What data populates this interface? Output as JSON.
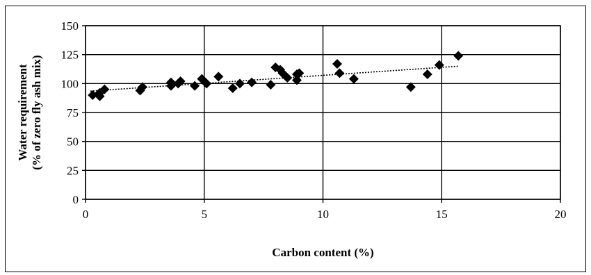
{
  "chart_data": {
    "type": "scatter",
    "title": "",
    "xlabel": "Carbon content (%)",
    "ylabel_line1": "Water requirement",
    "ylabel_line2": "(% of zero fly ash mix)",
    "xlim": [
      0,
      20
    ],
    "ylim": [
      0,
      150
    ],
    "x_ticks": [
      0,
      5,
      10,
      15,
      20
    ],
    "y_ticks": [
      0,
      25,
      50,
      75,
      100,
      125,
      150
    ],
    "grid": "horizontal and vertical major gridlines",
    "legend": "none",
    "marker": "filled diamond",
    "marker_color": "#000000",
    "trendline": {
      "style": "dotted",
      "x": [
        0.2,
        15.7
      ],
      "y": [
        93.5,
        115
      ]
    },
    "points": [
      {
        "x": 0.3,
        "y": 90
      },
      {
        "x": 0.6,
        "y": 89
      },
      {
        "x": 0.6,
        "y": 92
      },
      {
        "x": 0.8,
        "y": 95
      },
      {
        "x": 2.3,
        "y": 94
      },
      {
        "x": 2.4,
        "y": 97
      },
      {
        "x": 3.6,
        "y": 98
      },
      {
        "x": 3.6,
        "y": 101
      },
      {
        "x": 3.9,
        "y": 100
      },
      {
        "x": 4.0,
        "y": 102
      },
      {
        "x": 4.6,
        "y": 98
      },
      {
        "x": 4.9,
        "y": 104
      },
      {
        "x": 5.1,
        "y": 100
      },
      {
        "x": 5.6,
        "y": 106
      },
      {
        "x": 6.2,
        "y": 96
      },
      {
        "x": 6.5,
        "y": 100
      },
      {
        "x": 7.0,
        "y": 101
      },
      {
        "x": 7.8,
        "y": 99
      },
      {
        "x": 8.0,
        "y": 114
      },
      {
        "x": 8.2,
        "y": 112
      },
      {
        "x": 8.3,
        "y": 109
      },
      {
        "x": 8.5,
        "y": 105
      },
      {
        "x": 8.9,
        "y": 103
      },
      {
        "x": 8.9,
        "y": 108
      },
      {
        "x": 9.0,
        "y": 109
      },
      {
        "x": 10.6,
        "y": 117
      },
      {
        "x": 10.7,
        "y": 109
      },
      {
        "x": 11.3,
        "y": 104
      },
      {
        "x": 13.7,
        "y": 97
      },
      {
        "x": 14.4,
        "y": 108
      },
      {
        "x": 14.9,
        "y": 116
      },
      {
        "x": 15.7,
        "y": 124
      }
    ]
  }
}
